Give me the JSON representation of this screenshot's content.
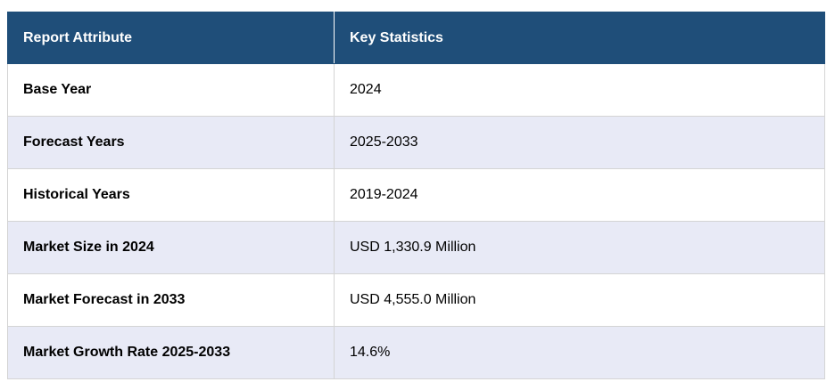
{
  "table": {
    "headers": [
      "Report Attribute",
      "Key Statistics"
    ],
    "rows": [
      {
        "attribute": "Base Year",
        "value": "2024"
      },
      {
        "attribute": "Forecast Years",
        "value": "2025-2033"
      },
      {
        "attribute": "Historical Years",
        "value": "2019-2024"
      },
      {
        "attribute": "Market Size in 2024",
        "value": "USD 1,330.9 Million"
      },
      {
        "attribute": "Market Forecast in 2033",
        "value": "USD 4,555.0 Million"
      },
      {
        "attribute": "Market Growth Rate 2025-2033",
        "value": "14.6%"
      }
    ],
    "colors": {
      "header_bg": "#1f4e79",
      "header_text": "#ffffff",
      "row_alt_bg": "#e8eaf6",
      "border": "#d4d4d4"
    }
  }
}
